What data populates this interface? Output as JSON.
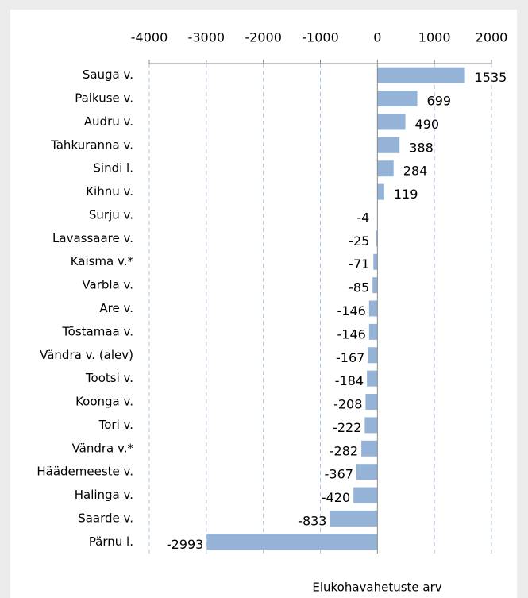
{
  "chart_data": {
    "type": "hbar",
    "x_label": "Elukohavahetuste arv",
    "categories": [
      "Sauga v.",
      "Paikuse v.",
      "Audru v.",
      "Tahkuranna v.",
      "Sindi l.",
      "Kihnu v.",
      "Surju v.",
      "Lavassaare v.",
      "Kaisma v.*",
      "Varbla v.",
      "Are v.",
      "Tõstamaa v.",
      "Vändra v. (alev)",
      "Tootsi v.",
      "Koonga v.",
      "Tori v.",
      "Vändra v.*",
      "Häädemeeste v.",
      "Halinga v.",
      "Saarde v.",
      "Pärnu l."
    ],
    "values": [
      1535,
      699,
      490,
      388,
      284,
      119,
      -4,
      -25,
      -71,
      -85,
      -146,
      -146,
      -167,
      -184,
      -208,
      -222,
      -282,
      -367,
      -420,
      -833,
      -2993
    ],
    "color": "#95b3d7",
    "xlim": [
      -4000,
      2000
    ],
    "xticks": [
      -4000,
      -3000,
      -2000,
      -1000,
      0,
      1000,
      2000
    ],
    "grid": true
  }
}
